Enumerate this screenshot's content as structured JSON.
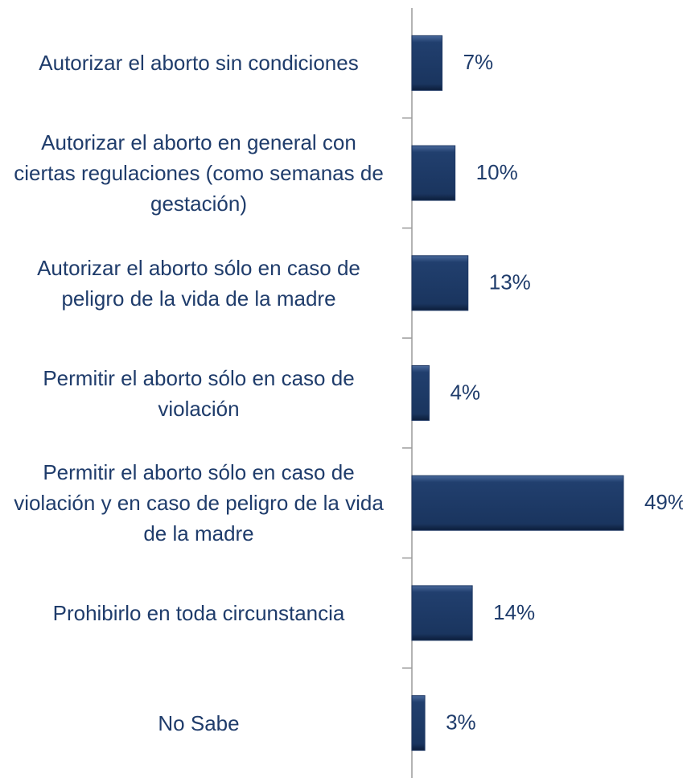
{
  "chart_data": {
    "type": "hbar",
    "categories": [
      "Autorizar el aborto sin condiciones",
      "Autorizar el aborto en general con ciertas regulaciones (como semanas de gestación)",
      "Autorizar el aborto sólo en caso de peligro de la vida de la madre",
      "Permitir el aborto sólo en caso de violación",
      "Permitir el aborto sólo en caso de violación y en caso de peligro de la vida de la madre",
      "Prohibirlo en toda circunstancia",
      "No Sabe"
    ],
    "values": [
      7,
      10,
      13,
      4,
      49,
      14,
      3
    ],
    "value_labels": [
      "7%",
      "10%",
      "13%",
      "4%",
      "49%",
      "14%",
      "3%"
    ],
    "color": "#1f3864",
    "xlim": [
      0,
      60
    ]
  }
}
